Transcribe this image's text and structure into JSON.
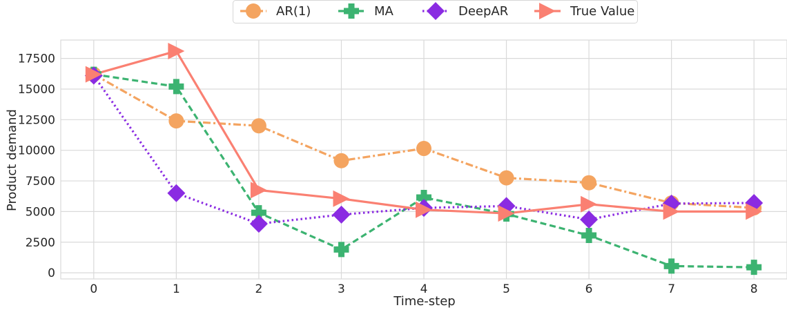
{
  "chart_data": {
    "type": "line",
    "title": "",
    "xlabel": "Time-step",
    "ylabel": "Product demand",
    "x": [
      0,
      1,
      2,
      3,
      4,
      5,
      6,
      7,
      8
    ],
    "xticks": [
      "0",
      "1",
      "2",
      "3",
      "4",
      "5",
      "6",
      "7",
      "8"
    ],
    "yticks": [
      "0",
      "2500",
      "5000",
      "7500",
      "10000",
      "12500",
      "15000",
      "17500"
    ],
    "ylim": [
      -500,
      19000
    ],
    "xlim": [
      -0.4,
      8.4
    ],
    "grid": true,
    "legend_position": "top-center",
    "series": [
      {
        "name": "AR(1)",
        "color": "#F4A460",
        "dash": "dash-dot",
        "marker": "circle",
        "values": [
          16200,
          12400,
          12000,
          9150,
          10150,
          7750,
          7350,
          5700,
          5300
        ]
      },
      {
        "name": "MA",
        "color": "#3CB371",
        "dash": "dashed",
        "marker": "plus",
        "values": [
          16200,
          15200,
          4900,
          1900,
          6150,
          4800,
          3050,
          550,
          450
        ]
      },
      {
        "name": "DeepAR",
        "color": "#8A2BE2",
        "dash": "dotted",
        "marker": "diamond",
        "values": [
          16100,
          6500,
          4000,
          4750,
          5300,
          5450,
          4350,
          5650,
          5700
        ]
      },
      {
        "name": "True Value",
        "color": "#FA8072",
        "dash": "solid",
        "marker": "triangle-right",
        "values": [
          16200,
          18100,
          6750,
          6050,
          5150,
          4850,
          5600,
          5000,
          5000
        ]
      }
    ]
  }
}
